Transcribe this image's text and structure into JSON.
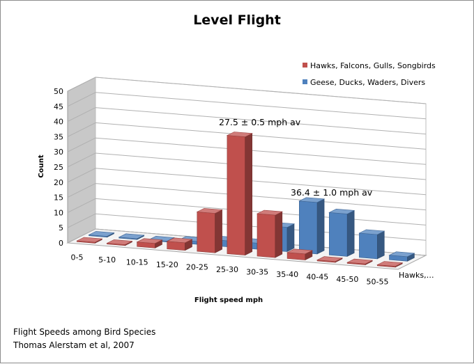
{
  "chart_data": {
    "type": "bar",
    "style": "3d-clustered-depth",
    "title": "Level Flight",
    "xlabel": "Flight speed mph",
    "ylabel": "Count",
    "ylim": [
      0,
      50
    ],
    "yticks": [
      0,
      5,
      10,
      15,
      20,
      25,
      30,
      35,
      40,
      45,
      50
    ],
    "grid": true,
    "legend_position": "top-right",
    "categories": [
      "0-5",
      "5-10",
      "10-15",
      "15-20",
      "20-25",
      "25-30",
      "30-35",
      "35-40",
      "40-45",
      "45-50",
      "50-55"
    ],
    "series": [
      {
        "name": "Hawks, Falcons, Gulls, Songbirds",
        "color": "#C0504D",
        "values": [
          0.3,
          0.3,
          1.5,
          2.5,
          13,
          39,
          14,
          2,
          0.3,
          0.3,
          0.3
        ]
      },
      {
        "name": "Geese, Ducks, Waders, Divers",
        "color": "#4F81BD",
        "values": [
          0.3,
          0.3,
          0.3,
          1,
          2,
          2,
          8,
          17,
          14,
          8,
          1.5
        ]
      }
    ],
    "depth_axis_label": "Hawks,…",
    "annotations": [
      {
        "text": "27.5 ± 0.5 mph av",
        "series": 0,
        "category": "25-30"
      },
      {
        "text": "36.4 ± 1.0 mph av",
        "series": 1,
        "category": "35-40"
      }
    ]
  },
  "source": {
    "line1": "Flight Speeds among Bird Species",
    "line2": "Thomas Alerstam et al, 2007"
  }
}
